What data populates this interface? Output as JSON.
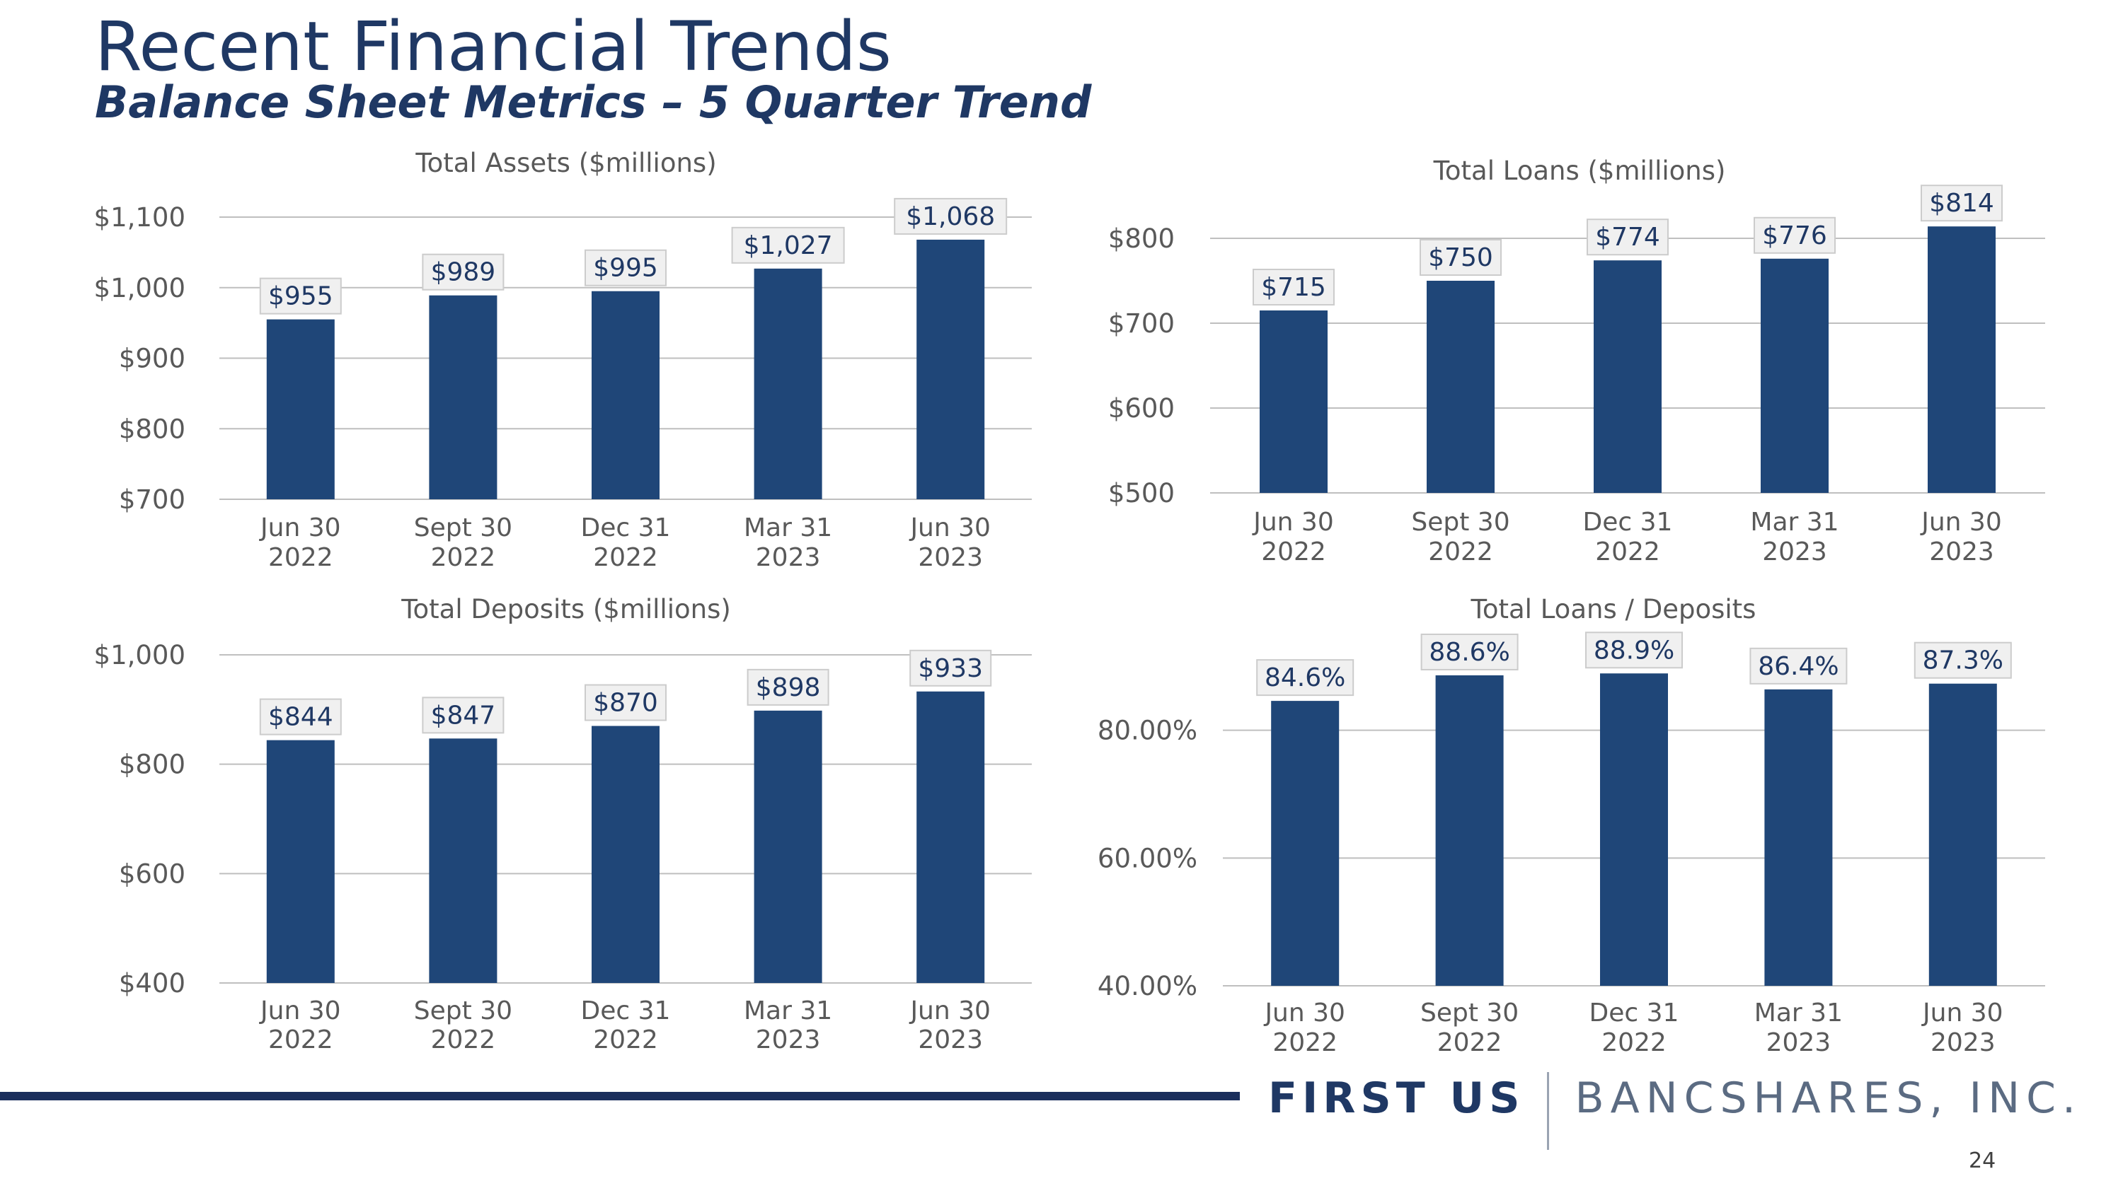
{
  "slide": {
    "title": "Recent Financial Trends",
    "subtitle": "Balance Sheet Metrics – 5 Quarter Trend",
    "page_number": "24"
  },
  "brand": {
    "name_bold": "FIRST US",
    "name_light": "BANCSHARES, INC."
  },
  "colors": {
    "bar": "#1f4678",
    "title": "#1f3864",
    "grid": "#bfbfbf",
    "axis_text": "#595959",
    "label_box_fill": "#f0f0f0",
    "label_box_stroke": "#cccccc",
    "label_text": "#1f3864"
  },
  "chart_data": [
    {
      "type": "bar",
      "title": "Total Assets ($millions)",
      "categories": [
        "Jun 30|2022",
        "Sept 30|2022",
        "Dec 31|2022",
        "Mar 31|2023",
        "Jun 30|2023"
      ],
      "values": [
        955,
        989,
        995,
        1027,
        1068
      ],
      "value_labels": [
        "$955",
        "$989",
        "$995",
        "$1,027",
        "$1,068"
      ],
      "ylim": [
        700,
        1100
      ],
      "yticks": [
        700,
        800,
        900,
        1000,
        1100
      ],
      "ytick_labels": [
        "$700",
        "$800",
        "$900",
        "$1,000",
        "$1,100"
      ],
      "grid": true
    },
    {
      "type": "bar",
      "title": "Total Loans ($millions)",
      "categories": [
        "Jun 30|2022",
        "Sept 30|2022",
        "Dec 31|2022",
        "Mar 31|2023",
        "Jun 30|2023"
      ],
      "values": [
        715,
        750,
        774,
        776,
        814
      ],
      "value_labels": [
        "$715",
        "$750",
        "$774",
        "$776",
        "$814"
      ],
      "ylim": [
        500,
        800
      ],
      "yticks": [
        500,
        600,
        700,
        800
      ],
      "ytick_labels": [
        "$500",
        "$600",
        "$700",
        "$800"
      ],
      "grid": true
    },
    {
      "type": "bar",
      "title": "Total Deposits ($millions)",
      "categories": [
        "Jun 30|2022",
        "Sept 30|2022",
        "Dec 31|2022",
        "Mar 31|2023",
        "Jun 30|2023"
      ],
      "values": [
        844,
        847,
        870,
        898,
        933
      ],
      "value_labels": [
        "$844",
        "$847",
        "$870",
        "$898",
        "$933"
      ],
      "ylim": [
        400,
        1000
      ],
      "yticks": [
        400,
        600,
        800,
        1000
      ],
      "ytick_labels": [
        "$400",
        "$600",
        "$800",
        "$1,000"
      ],
      "grid": true
    },
    {
      "type": "bar",
      "title": "Total Loans / Deposits",
      "categories": [
        "Jun 30|2022",
        "Sept 30|2022",
        "Dec 31|2022",
        "Mar 31|2023",
        "Jun 30|2023"
      ],
      "values": [
        84.6,
        88.6,
        88.9,
        86.4,
        87.3
      ],
      "value_labels": [
        "84.6%",
        "88.6%",
        "88.9%",
        "86.4%",
        "87.3%"
      ],
      "ylim": [
        40,
        100
      ],
      "yticks": [
        40,
        60,
        80
      ],
      "ytick_labels": [
        "40.00%",
        "60.00%",
        "80.00%"
      ],
      "grid": true
    }
  ]
}
